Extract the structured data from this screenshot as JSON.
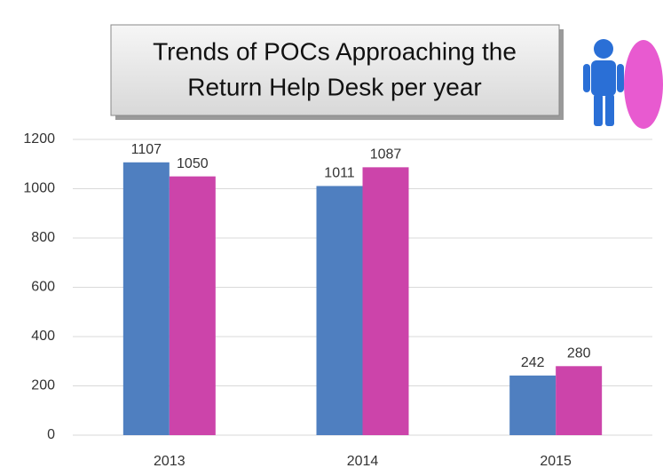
{
  "chart_data": {
    "type": "bar",
    "title": [
      "Trends of POCs Approaching the",
      "Return Help Desk per year"
    ],
    "categories": [
      "2013",
      "2014",
      "2015"
    ],
    "series": [
      {
        "color": "#4f7fc0",
        "values": [
          1107,
          1011,
          242
        ]
      },
      {
        "color": "#cc44aa",
        "values": [
          1050,
          1087,
          280
        ]
      }
    ],
    "ylim": [
      0,
      1200
    ],
    "yticks": [
      0,
      200,
      400,
      600,
      800,
      1000,
      1200
    ],
    "grid": true
  }
}
